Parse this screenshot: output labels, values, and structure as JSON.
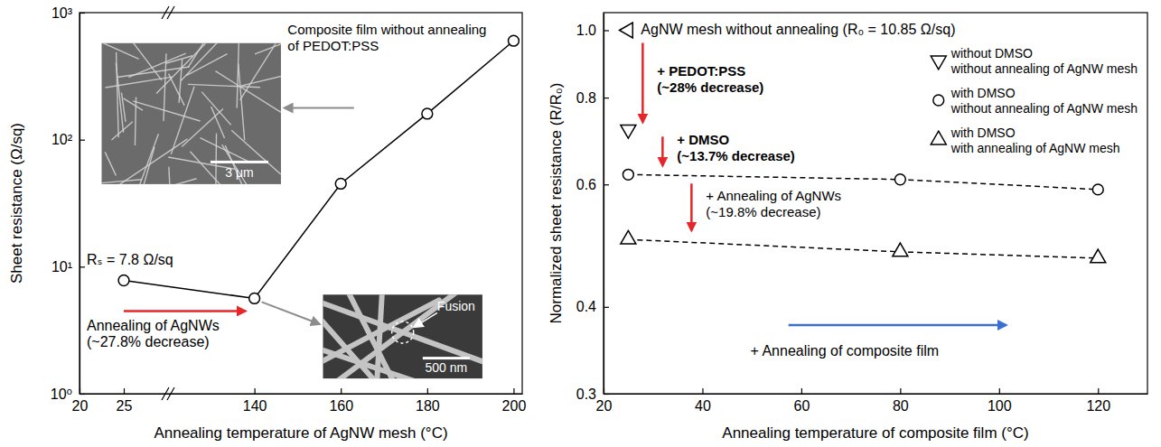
{
  "chart_data": [
    {
      "type": "line",
      "x_label": "Annealing temperature of AgNW mesh (°C)",
      "y_label": "Sheet resistance (Ω/sq)",
      "x": [
        25,
        140,
        160,
        180,
        200
      ],
      "values": [
        7.8,
        5.63,
        45,
        160,
        600
      ],
      "color": "#000000",
      "marker": "circle",
      "line_style": "solid",
      "log": "y",
      "xlim": [
        20,
        202
      ],
      "xticks": [
        20,
        25,
        140,
        160,
        180,
        200
      ],
      "ylim": [
        1,
        1000
      ],
      "yticks": [
        {
          "value": 1,
          "label": "10⁰"
        },
        {
          "value": 10,
          "label": "10¹"
        },
        {
          "value": 100,
          "label": "10²"
        },
        {
          "value": 1000,
          "label": "10³"
        }
      ],
      "annotations": [
        "Composite film without annealing\nof PEDOT:PSS",
        "Rₛ = 7.8 Ω/sq",
        "Annealing of AgNWs\n(~27.8% decrease)",
        "3 μm",
        "500 nm",
        "Fusion"
      ]
    },
    {
      "type": "scatter",
      "x_label": "Annealing temperature of composite film (°C)",
      "y_label": "Normalized sheet resistance (R/R₀)",
      "log": "y",
      "xlim": [
        20,
        130
      ],
      "xticks": [
        20,
        40,
        60,
        80,
        100,
        120
      ],
      "ylim": [
        0.3,
        1.06
      ],
      "yticks": [
        0.3,
        0.4,
        0.6,
        0.8,
        {
          "value": 1,
          "label": "1.0"
        }
      ],
      "legend": "upper right",
      "series": [
        {
          "x": [
            25
          ],
          "values": [
            1
          ],
          "color": "#000000",
          "marker": "triangle-left",
          "line_style": "none"
        },
        {
          "name": "without DMSO\nwithout annealing of AgNW mesh",
          "x": [
            25
          ],
          "values": [
            0.72
          ],
          "color": "#000000",
          "marker": "triangle-down",
          "line_style": "none"
        },
        {
          "name": "with DMSO\nwithout annealing of AgNW mesh",
          "x": [
            25,
            80,
            120
          ],
          "values": [
            0.62,
            0.61,
            0.59
          ],
          "color": "#000000",
          "marker": "circle",
          "line_style": "dashed"
        },
        {
          "name": "with DMSO\nwith annealing of AgNW mesh",
          "x": [
            25,
            80,
            120
          ],
          "values": [
            0.5,
            0.48,
            0.47
          ],
          "color": "#000000",
          "marker": "triangle-up",
          "line_style": "dashed"
        }
      ],
      "annotations": [
        "AgNW mesh without annealing (R₀ = 10.85 Ω/sq)",
        "+ PEDOT:PSS\n(~28% decrease)",
        "+ DMSO\n(~13.7% decrease)",
        "+ Annealing of AgNWs\n(~19.8% decrease)",
        "+ Annealing of composite film"
      ]
    }
  ]
}
